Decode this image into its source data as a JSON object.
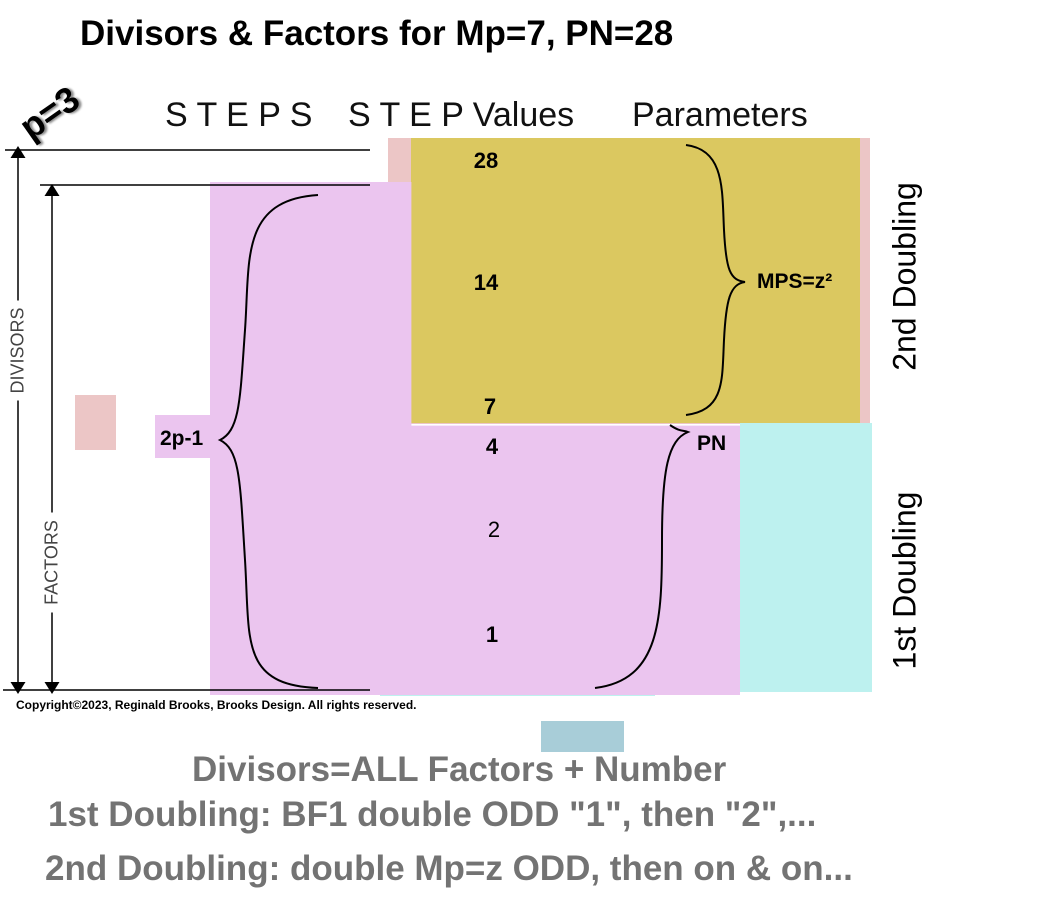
{
  "title": "Divisors & Factors for Mp=7, PN=28",
  "p_label": "p=3",
  "headers": {
    "steps": "S T E P S",
    "step_values": "S T E P Values",
    "parameters": "Parameters"
  },
  "step_values": [
    "28",
    "14",
    "7",
    "4",
    "2",
    "1"
  ],
  "labels": {
    "mps": "MPS=z²",
    "pn": "PN",
    "two_p_minus_1": "2p-1",
    "divisors": "DIVISORS",
    "factors": "FACTORS",
    "second_doubling": "2nd Doubling",
    "first_doubling": "1st Doubling"
  },
  "copyright": "Copyright©2023, Reginald Brooks, Brooks Design. All rights reserved.",
  "notes": [
    "Divisors=ALL Factors + Number",
    "1st Doubling: BF1 double ODD \"1\", then \"2\",...",
    "2nd Doubling: double Mp=z ODD, then on & on..."
  ],
  "colors": {
    "pink": "#ecc6c6",
    "yellow": "#dbc860",
    "lavender": "#ebc5ef",
    "cyan": "#bdf1ef",
    "blue": "#a8cdd8"
  }
}
